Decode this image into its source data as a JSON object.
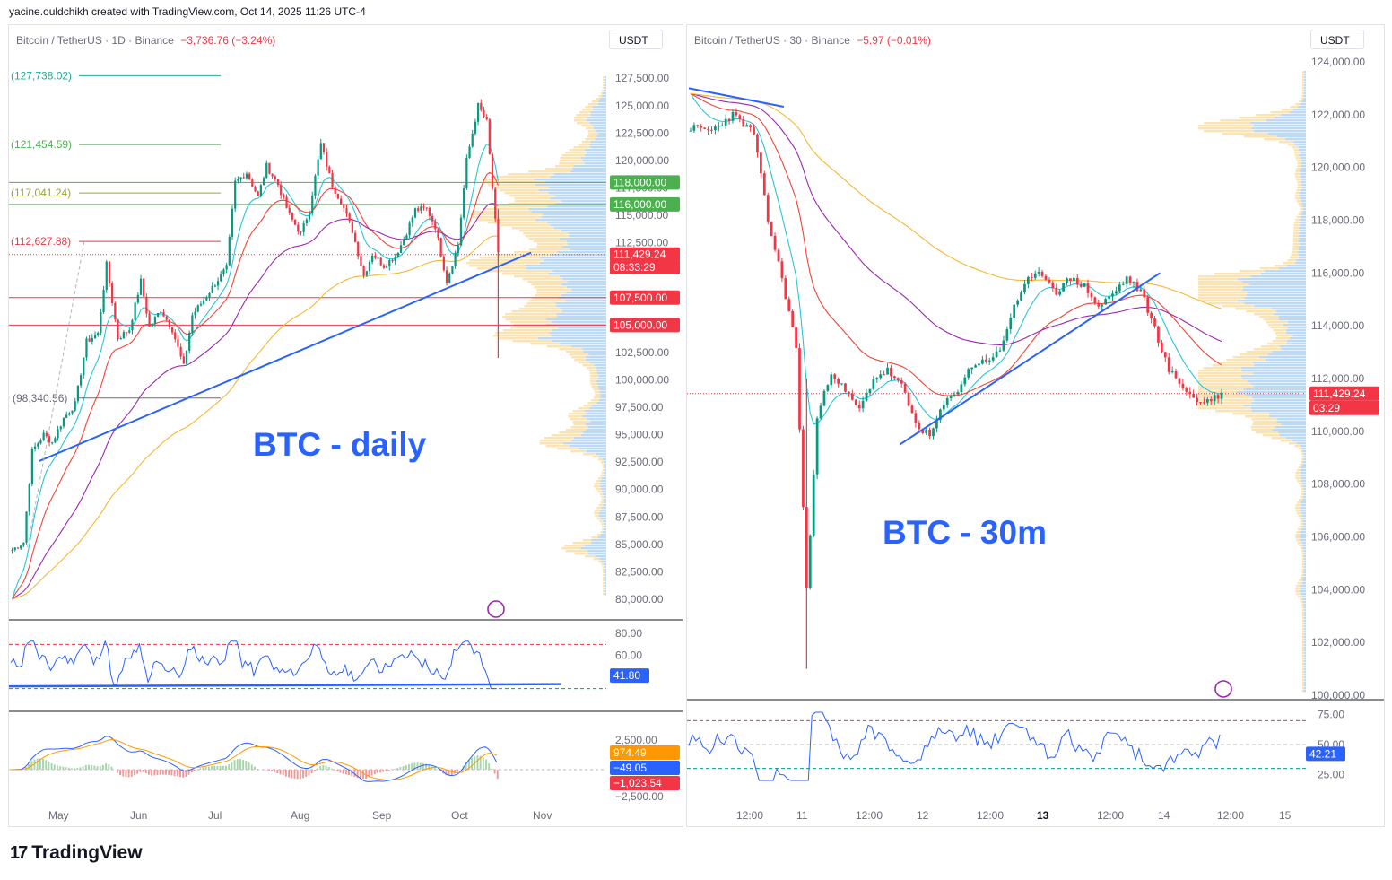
{
  "header": "yacine.ouldchikh created with TradingView.com, Oct 14, 2025 11:26 UTC-4",
  "brand": {
    "mark": "17",
    "name": "TradingView"
  },
  "colors": {
    "up": "#089981",
    "down": "#f23645",
    "trendline": "#2962ff",
    "ema20": "#26c6da",
    "ema50": "#f44336",
    "ema100": "#9c27b0",
    "ema200": "#f7b733",
    "vp_up": "#bcd9f5",
    "vp_down": "#fbe3b3",
    "label_green": "#4caf50",
    "label_red": "#f23645",
    "label_blue": "#2962ff",
    "label_orange": "#ff9800"
  },
  "left_chart": {
    "symbol": "Bitcoin / TetherUS · 1D · Binance",
    "change": "−3,736.76 (−3.24%)",
    "currency": "USDT",
    "title_overlay": "BTC - daily",
    "price_axis": [
      "127,500.00",
      "125,000.00",
      "122,500.00",
      "120,000.00",
      "117,500.00",
      "115,000.00",
      "112,500.00",
      "110,000.00",
      "107,500.00",
      "105,000.00",
      "102,500.00",
      "100,000.00",
      "97,500.00",
      "95,000.00",
      "92,500.00",
      "90,000.00",
      "87,500.00",
      "85,000.00",
      "82,500.00",
      "80,000.00"
    ],
    "time_axis": [
      "May",
      "Jun",
      "Jul",
      "Aug",
      "Sep",
      "Oct",
      "Nov"
    ],
    "fib_labels": [
      {
        "text": "(127,738.02)",
        "color": "#22ab94"
      },
      {
        "text": "(121,454.59)",
        "color": "#4caf50"
      },
      {
        "text": "(117,041.24)",
        "color": "#9aa72a"
      },
      {
        "text": "(112,627.88)",
        "color": "#f23645"
      },
      {
        "text": "0 (98,340.56)",
        "color": "#6a6d78"
      }
    ],
    "price_tags": [
      {
        "text": "118,000.00",
        "color": "#4caf50"
      },
      {
        "text": "116,000.00",
        "color": "#4caf50"
      },
      {
        "text": "111,429.24",
        "color": "#f23645"
      },
      {
        "text": "08:33:29",
        "color": "#f23645"
      },
      {
        "text": "107,500.00",
        "color": "#f23645"
      },
      {
        "text": "105,000.00",
        "color": "#f23645"
      }
    ],
    "rsi_axis": [
      "80.00",
      "60.00"
    ],
    "rsi_value": "41.80",
    "macd_axis": [
      "2,500.00",
      "−2,500.00"
    ],
    "macd_values": [
      {
        "text": "974.49",
        "color": "#ff9800"
      },
      {
        "text": "−49.05",
        "color": "#2962ff"
      },
      {
        "text": "−1,023.54",
        "color": "#f23645"
      }
    ]
  },
  "right_chart": {
    "symbol": "Bitcoin / TetherUS · 30 · Binance",
    "change": "−5.97 (−0.01%)",
    "currency": "USDT",
    "title_overlay": "BTC - 30m",
    "price_axis": [
      "124,000.00",
      "122,000.00",
      "120,000.00",
      "118,000.00",
      "116,000.00",
      "114,000.00",
      "112,000.00",
      "110,000.00",
      "108,000.00",
      "106,000.00",
      "104,000.00",
      "102,000.00",
      "100,000.00"
    ],
    "time_axis": [
      "12:00",
      "11",
      "12:00",
      "12",
      "12:00",
      "13",
      "12:00",
      "14",
      "12:00",
      "15"
    ],
    "price_tags": [
      {
        "text": "111,429.24",
        "color": "#f23645"
      },
      {
        "text": "03:29",
        "color": "#f23645"
      }
    ],
    "rsi_axis": [
      "75.00",
      "50.00",
      "25.00"
    ],
    "rsi_value": "42.21"
  },
  "chart_data": [
    {
      "type": "candlestick",
      "title": "BTC - daily",
      "ylim": [
        80000,
        128500
      ],
      "close_series": [
        [
          0,
          84500
        ],
        [
          4,
          85200
        ],
        [
          7,
          93500
        ],
        [
          11,
          95000
        ],
        [
          14,
          94300
        ],
        [
          18,
          96500
        ],
        [
          22,
          97800
        ],
        [
          26,
          103500
        ],
        [
          30,
          104200
        ],
        [
          33,
          110500
        ],
        [
          37,
          103800
        ],
        [
          41,
          104600
        ],
        [
          45,
          109000
        ],
        [
          48,
          104800
        ],
        [
          52,
          106400
        ],
        [
          56,
          104600
        ],
        [
          60,
          101200
        ],
        [
          63,
          105900
        ],
        [
          67,
          107300
        ],
        [
          71,
          108800
        ],
        [
          75,
          110200
        ],
        [
          78,
          118000
        ],
        [
          82,
          118900
        ],
        [
          86,
          116700
        ],
        [
          89,
          119500
        ],
        [
          93,
          117800
        ],
        [
          97,
          115000
        ],
        [
          101,
          113300
        ],
        [
          104,
          115500
        ],
        [
          108,
          121500
        ],
        [
          112,
          117700
        ],
        [
          115,
          116300
        ],
        [
          119,
          113600
        ],
        [
          123,
          109500
        ],
        [
          126,
          111500
        ],
        [
          130,
          110400
        ],
        [
          134,
          111300
        ],
        [
          137,
          112800
        ],
        [
          141,
          115500
        ],
        [
          145,
          115600
        ],
        [
          148,
          114000
        ],
        [
          152,
          109000
        ],
        [
          156,
          112300
        ],
        [
          159,
          120000
        ],
        [
          163,
          125000
        ],
        [
          166,
          123500
        ],
        [
          170,
          111400
        ]
      ],
      "horizontal_levels": [
        118000,
        116000,
        107500,
        105000
      ],
      "fib_levels": [
        127738.02,
        121454.59,
        117041.24,
        112627.88,
        98340.56
      ],
      "last_price": 111429.24,
      "rsi": {
        "last": 41.8,
        "upper": 70,
        "lower": 30
      }
    },
    {
      "type": "candlestick",
      "title": "BTC - 30m",
      "ylim": [
        100000,
        124000
      ],
      "close_series": [
        [
          0,
          121500
        ],
        [
          6,
          121400
        ],
        [
          12,
          122000
        ],
        [
          18,
          121300
        ],
        [
          22,
          118000
        ],
        [
          26,
          115800
        ],
        [
          30,
          113200
        ],
        [
          33,
          104000
        ],
        [
          36,
          110500
        ],
        [
          40,
          112300
        ],
        [
          44,
          111500
        ],
        [
          48,
          110800
        ],
        [
          52,
          112000
        ],
        [
          56,
          112300
        ],
        [
          60,
          111700
        ],
        [
          64,
          110300
        ],
        [
          68,
          109800
        ],
        [
          72,
          111000
        ],
        [
          76,
          111600
        ],
        [
          80,
          112500
        ],
        [
          84,
          112700
        ],
        [
          88,
          113000
        ],
        [
          92,
          114800
        ],
        [
          96,
          115700
        ],
        [
          100,
          116000
        ],
        [
          104,
          115300
        ],
        [
          108,
          115800
        ],
        [
          112,
          115500
        ],
        [
          116,
          114700
        ],
        [
          120,
          115200
        ],
        [
          124,
          115800
        ],
        [
          128,
          115300
        ],
        [
          132,
          113900
        ],
        [
          136,
          112300
        ],
        [
          140,
          111700
        ],
        [
          144,
          111100
        ],
        [
          148,
          111200
        ],
        [
          151,
          111430
        ]
      ],
      "horizontal_levels": [],
      "last_price": 111429.24,
      "rsi": {
        "last": 42.21,
        "upper": 70,
        "lower": 30
      }
    }
  ]
}
